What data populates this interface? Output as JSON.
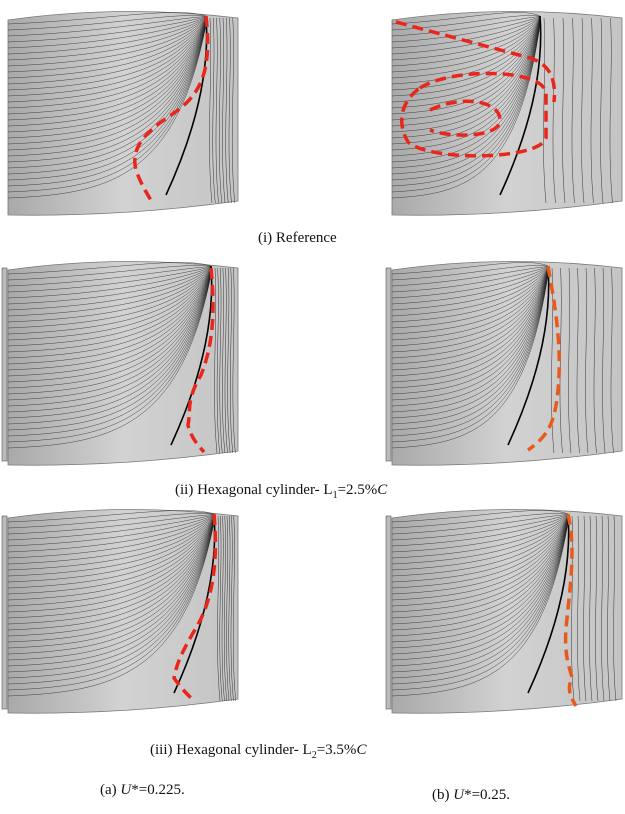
{
  "captions": [
    {
      "prefix": "(i) Reference"
    },
    {
      "prefix": "(ii) Hexagonal cylinder- L",
      "sub": "1",
      "mid": "=2.5%",
      "italic": "C"
    },
    {
      "prefix": "(iii) Hexagonal cylinder- L",
      "sub": "2",
      "mid": "=3.5%",
      "italic": "C"
    }
  ],
  "columns": [
    {
      "prefix": "(a) ",
      "italic": "U",
      "rest": "*=0.225."
    },
    {
      "prefix": "(b) ",
      "italic": "U",
      "rest": "*=0.25."
    }
  ]
}
